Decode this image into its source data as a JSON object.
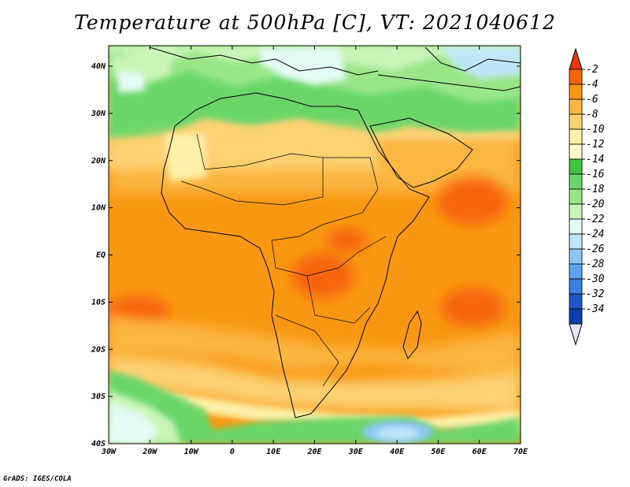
{
  "title": "Temperature at 500hPa [C], VT: 2021040612",
  "credit": "GrADS: IGES/COLA",
  "lon_ticks": [
    "30W",
    "20W",
    "10W",
    "0",
    "10E",
    "20E",
    "30E",
    "40E",
    "50E",
    "60E",
    "70E"
  ],
  "lat_ticks": [
    "40N",
    "30N",
    "20N",
    "10N",
    "EQ",
    "10S",
    "20S",
    "30S",
    "40S"
  ],
  "colorbar": {
    "labels": [
      "-2",
      "-4",
      "-6",
      "-8",
      "-10",
      "-12",
      "-14",
      "-16",
      "-18",
      "-20",
      "-22",
      "-24",
      "-26",
      "-28",
      "-30",
      "-32",
      "-34"
    ],
    "colors": [
      "#e8340f",
      "#f7650a",
      "#f99712",
      "#fab641",
      "#fcd273",
      "#fef0a6",
      "#fff8c9",
      "#3ec63e",
      "#6ad66a",
      "#99e689",
      "#c9f5b7",
      "#e3fbf5",
      "#bfe6f8",
      "#8cc6f4",
      "#5aa3ee",
      "#3c7fe3",
      "#1e55c8",
      "#0c3fae",
      "#0a1f7a"
    ]
  },
  "legend_semantics": {
    "field": "500hPa temperature",
    "units": "C",
    "palette": "warm oranges/reds for warmer values, greens for mid values, blues for colder values"
  }
}
